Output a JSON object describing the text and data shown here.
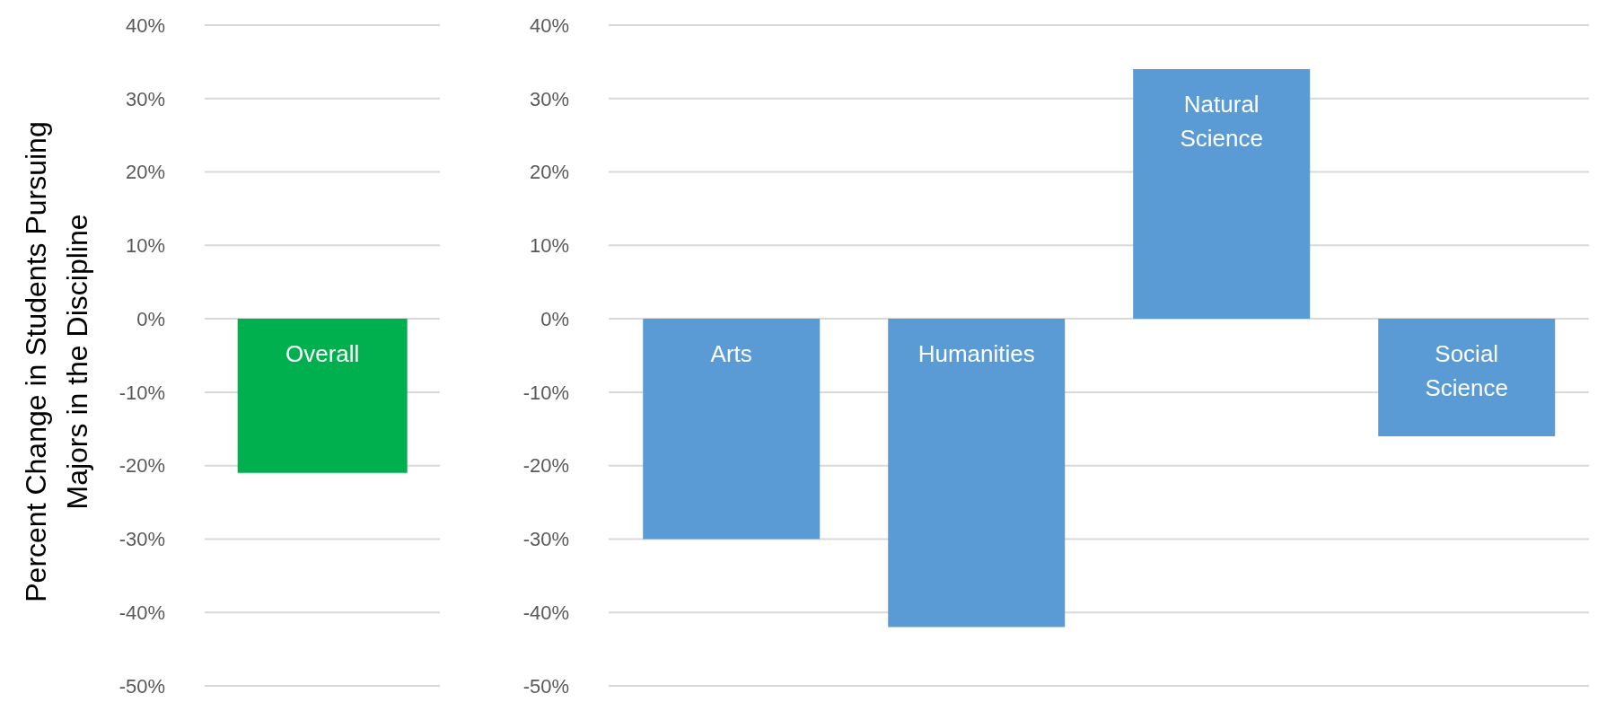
{
  "chart_data": [
    {
      "type": "bar",
      "ylabel": "Percent Change in Students Pursuing Majors in the Discipline",
      "categories": [
        "Overall"
      ],
      "values": [
        -21
      ],
      "color": "#00b04f",
      "ylim": [
        -50,
        40
      ],
      "yticks": [
        {
          "value": -50,
          "label": "-50%"
        },
        {
          "value": -40,
          "label": "-40%"
        },
        {
          "value": -30,
          "label": "-30%"
        },
        {
          "value": -20,
          "label": "-20%"
        },
        {
          "value": -10,
          "label": "-10%"
        },
        {
          "value": 0,
          "label": "0%"
        },
        {
          "value": 10,
          "label": "10%"
        },
        {
          "value": 20,
          "label": "20%"
        },
        {
          "value": 30,
          "label": "30%"
        },
        {
          "value": 40,
          "label": "40%"
        }
      ],
      "grid": "y"
    },
    {
      "type": "bar",
      "categories": [
        "Arts",
        "Humanities",
        "Natural Science",
        "Social Science"
      ],
      "values": [
        -30,
        -42,
        34,
        -16
      ],
      "color": "#5b9bd5",
      "ylim": [
        -50,
        40
      ],
      "yticks": [
        {
          "value": -50,
          "label": "-50%"
        },
        {
          "value": -40,
          "label": "-40%"
        },
        {
          "value": -30,
          "label": "-30%"
        },
        {
          "value": -20,
          "label": "-20%"
        },
        {
          "value": -10,
          "label": "-10%"
        },
        {
          "value": 0,
          "label": "0%"
        },
        {
          "value": 10,
          "label": "10%"
        },
        {
          "value": 20,
          "label": "20%"
        },
        {
          "value": 30,
          "label": "30%"
        },
        {
          "value": 40,
          "label": "40%"
        }
      ],
      "grid": "y"
    }
  ]
}
